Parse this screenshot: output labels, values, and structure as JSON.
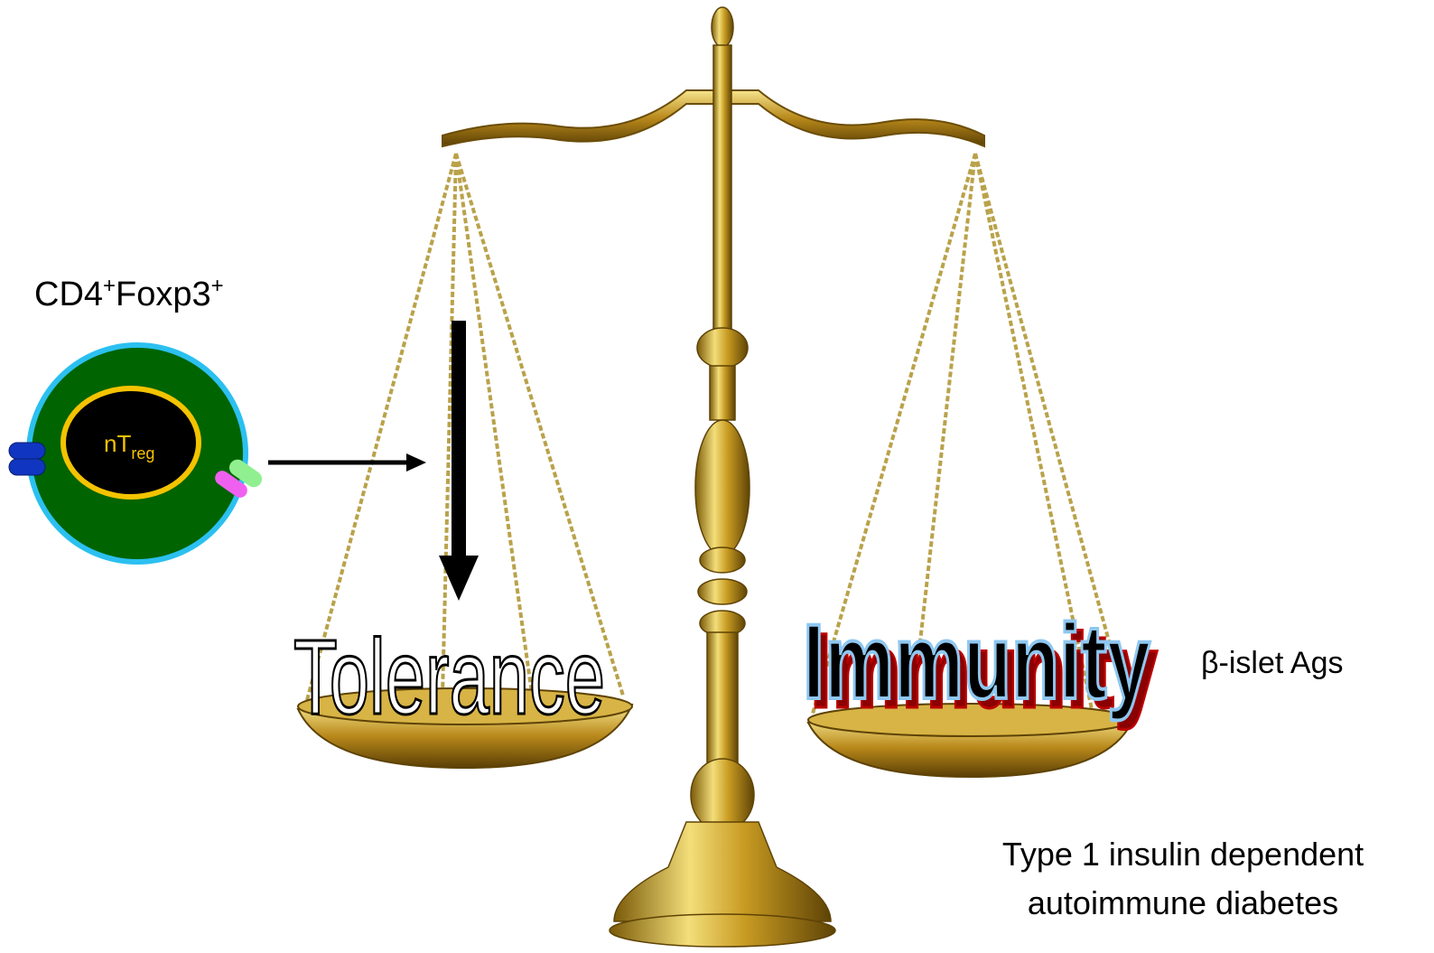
{
  "cell": {
    "marker": "CD4",
    "marker_sup": "+",
    "marker2": "Foxp3",
    "marker2_sup": "+",
    "core": "nT",
    "core_sub": "reg"
  },
  "scale": {
    "left_pan": "Tolerance",
    "right_pan": "Immunity"
  },
  "antigen": "β-islet Ags",
  "disease": [
    "Type 1 insulin dependent",
    "autoimmune diabetes"
  ]
}
